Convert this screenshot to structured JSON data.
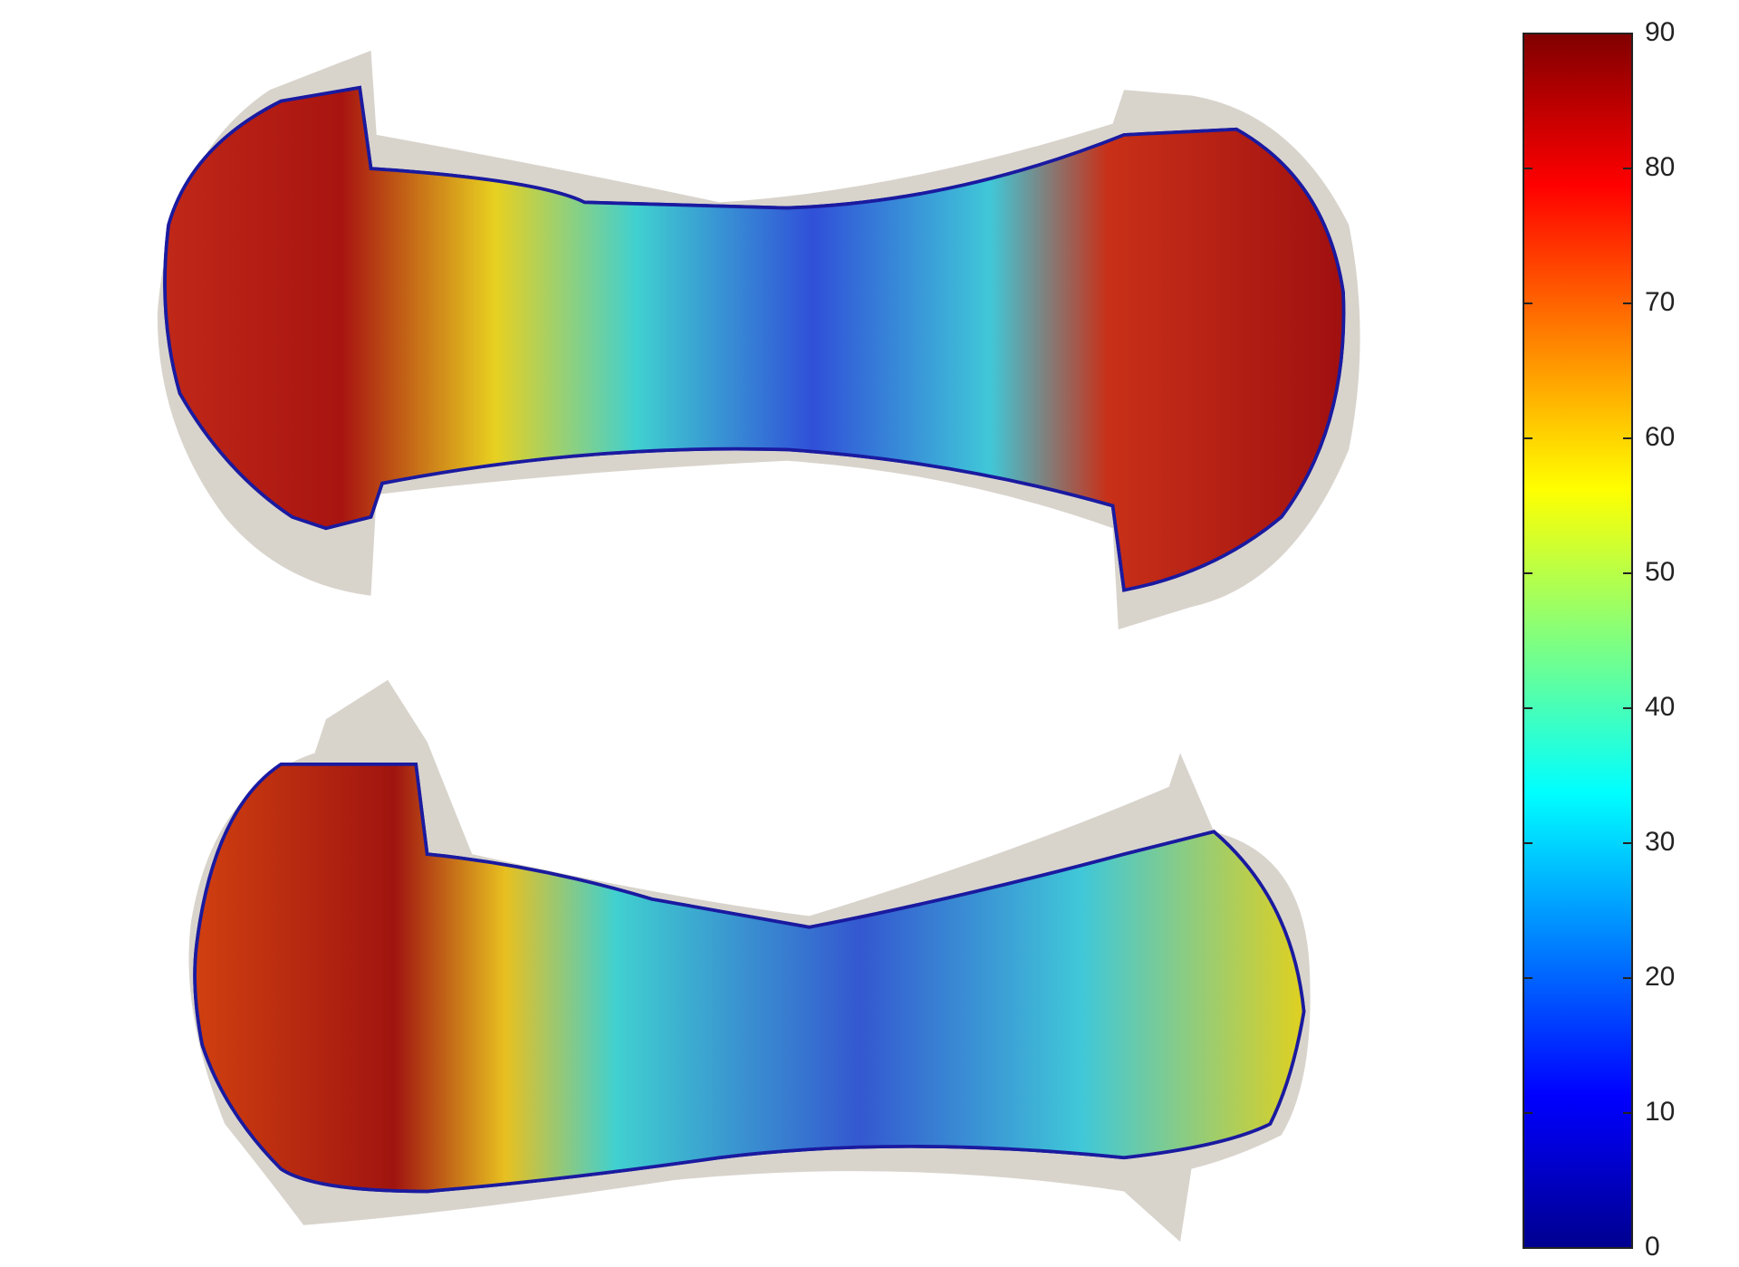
{
  "chart_data": {
    "type": "colorbar",
    "ylim": [
      0,
      90
    ],
    "yticks": [
      0,
      10,
      20,
      30,
      40,
      50,
      60,
      70,
      80,
      90
    ],
    "colormap": [
      "#00008f",
      "#0000ff",
      "#0080ff",
      "#00ffff",
      "#80ff80",
      "#ffff00",
      "#ff8000",
      "#ff0000",
      "#800000"
    ]
  }
}
